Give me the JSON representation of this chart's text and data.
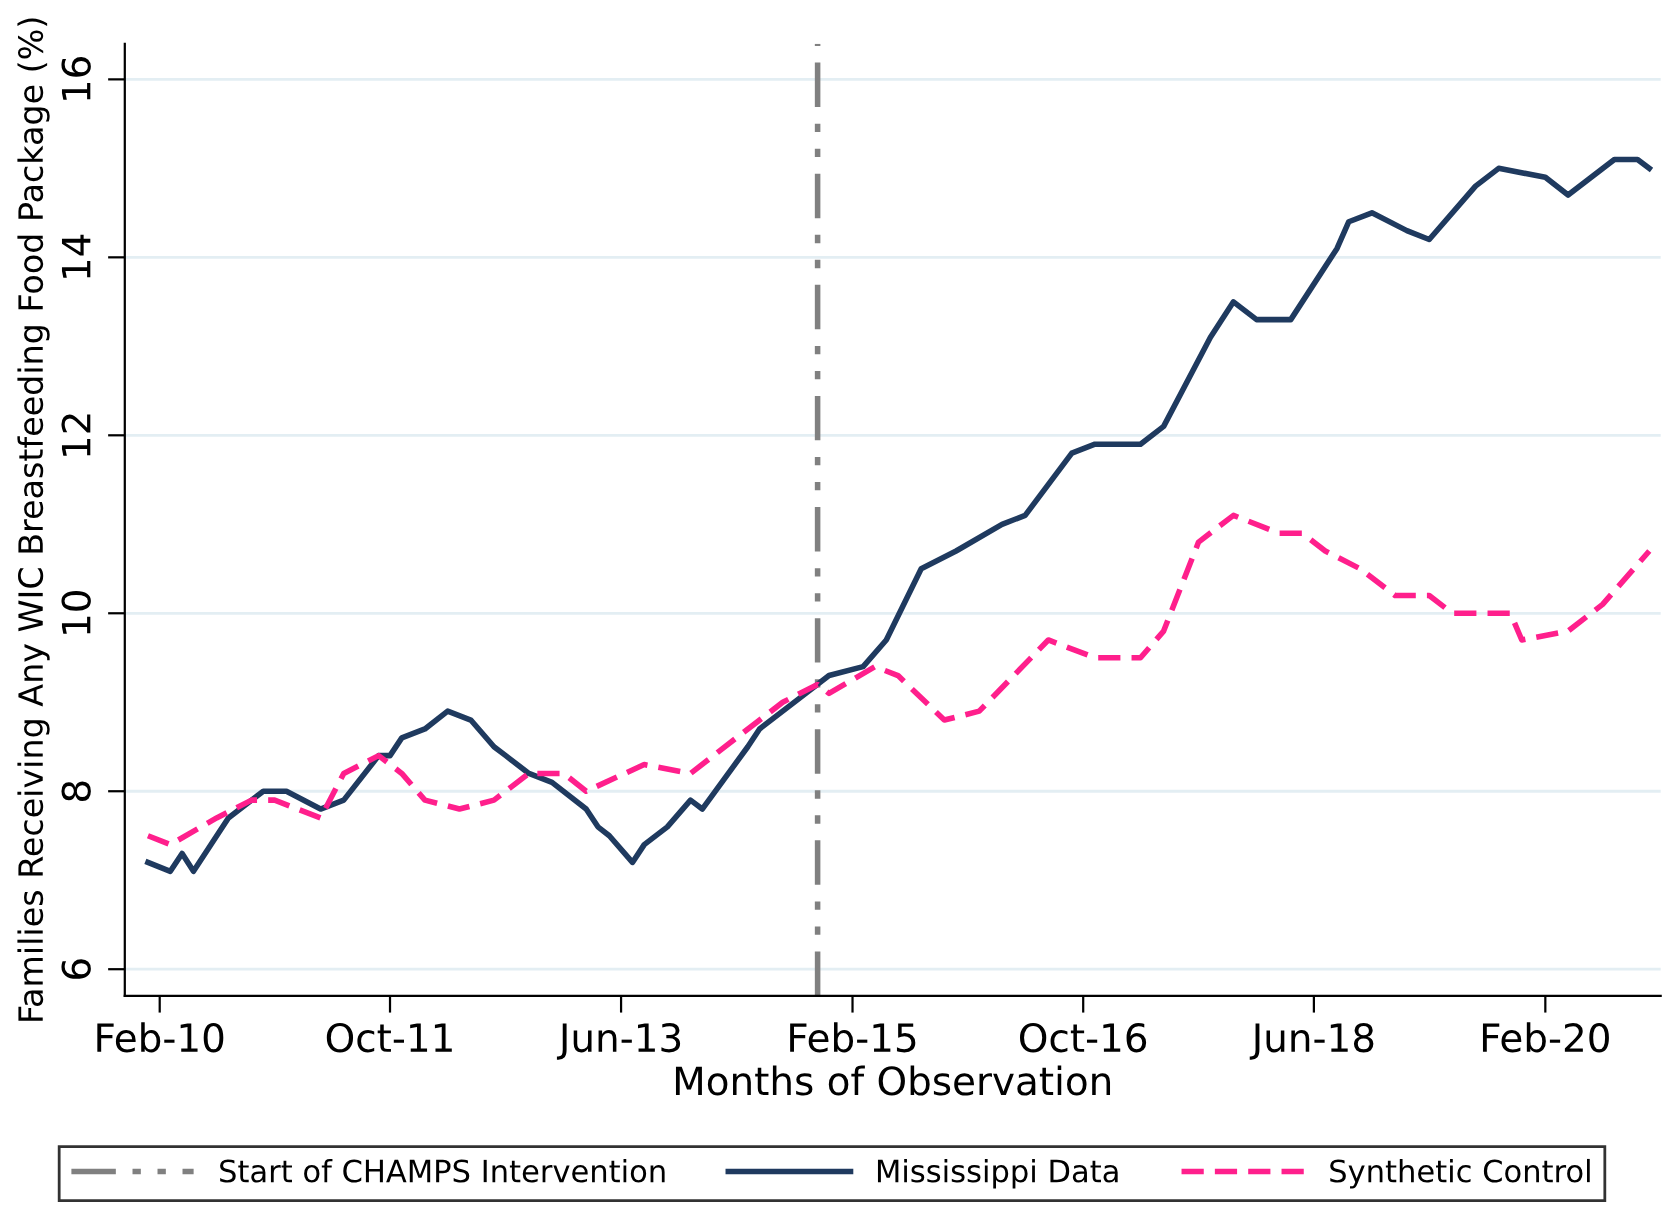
{
  "chart_data": {
    "type": "line",
    "xlabel": "Months of Observation",
    "ylabel": "Families Receiving Any WIC Breastfeeding Food Package (%)",
    "xlim": [
      "2009-11",
      "2020-12"
    ],
    "xticks": [
      {
        "value": "2010-02",
        "label": "Feb-10"
      },
      {
        "value": "2011-10",
        "label": "Oct-11"
      },
      {
        "value": "2013-06",
        "label": "Jun-13"
      },
      {
        "value": "2015-02",
        "label": "Feb-15"
      },
      {
        "value": "2016-10",
        "label": "Oct-16"
      },
      {
        "value": "2018-06",
        "label": "Jun-18"
      },
      {
        "value": "2020-02",
        "label": "Feb-20"
      }
    ],
    "ylim": [
      5.7,
      16.4
    ],
    "yticks": [
      6,
      8,
      10,
      12,
      14,
      16
    ],
    "grid": "y",
    "legend": "bottom",
    "ref_lines": [
      {
        "axis": "x",
        "value": "2014-11",
        "label": "Start of CHAMPS Intervention",
        "color": "#808080",
        "line_style": "dashdot"
      }
    ],
    "series": [
      {
        "name": "Mississippi Data",
        "color": "#1f3a5f",
        "line_style": "solid",
        "x": [
          "2010-01",
          "2010-03",
          "2010-04",
          "2010-05",
          "2010-08",
          "2010-11",
          "2011-01",
          "2011-04",
          "2011-06",
          "2011-09",
          "2011-10",
          "2011-11",
          "2012-01",
          "2012-03",
          "2012-05",
          "2012-07",
          "2012-08",
          "2012-10",
          "2012-12",
          "2013-03",
          "2013-04",
          "2013-05",
          "2013-07",
          "2013-08",
          "2013-10",
          "2013-12",
          "2014-01",
          "2014-05",
          "2014-06",
          "2014-10",
          "2014-12",
          "2015-03",
          "2015-05",
          "2015-08",
          "2015-11",
          "2016-03",
          "2016-05",
          "2016-09",
          "2016-11",
          "2017-03",
          "2017-05",
          "2017-09",
          "2017-11",
          "2018-01",
          "2018-04",
          "2018-08",
          "2018-09",
          "2018-11",
          "2019-02",
          "2019-04",
          "2019-08",
          "2019-10",
          "2020-02",
          "2020-04",
          "2020-06",
          "2020-08",
          "2020-10",
          "2020-11"
        ],
        "values": [
          7.2,
          7.1,
          7.3,
          7.1,
          7.7,
          8.0,
          8.0,
          7.8,
          7.9,
          8.4,
          8.4,
          8.6,
          8.7,
          8.9,
          8.8,
          8.5,
          8.4,
          8.2,
          8.1,
          7.8,
          7.6,
          7.5,
          7.2,
          7.4,
          7.6,
          7.9,
          7.8,
          8.5,
          8.7,
          9.1,
          9.3,
          9.4,
          9.7,
          10.5,
          10.7,
          11.0,
          11.1,
          11.8,
          11.9,
          11.9,
          12.1,
          13.1,
          13.5,
          13.3,
          13.3,
          14.1,
          14.4,
          14.5,
          14.3,
          14.2,
          14.8,
          15.0,
          14.9,
          14.7,
          14.9,
          15.1,
          15.1,
          15.0
        ]
      },
      {
        "name": "Synthetic Control",
        "color": "#ff1f8c",
        "line_style": "dashed",
        "x": [
          "2010-01",
          "2010-03",
          "2010-07",
          "2010-10",
          "2010-12",
          "2011-04",
          "2011-06",
          "2011-09",
          "2011-11",
          "2012-01",
          "2012-04",
          "2012-07",
          "2012-10",
          "2013-01",
          "2013-03",
          "2013-08",
          "2013-12",
          "2014-04",
          "2014-08",
          "2014-11",
          "2014-12",
          "2015-04",
          "2015-06",
          "2015-10",
          "2016-01",
          "2016-07",
          "2016-11",
          "2017-03",
          "2017-05",
          "2017-08",
          "2017-11",
          "2018-03",
          "2018-05",
          "2018-07",
          "2018-10",
          "2019-01",
          "2019-04",
          "2019-06",
          "2019-11",
          "2019-12",
          "2020-04",
          "2020-07",
          "2020-11"
        ],
        "values": [
          7.5,
          7.4,
          7.7,
          7.9,
          7.9,
          7.7,
          8.2,
          8.4,
          8.2,
          7.9,
          7.8,
          7.9,
          8.2,
          8.2,
          8.0,
          8.3,
          8.2,
          8.6,
          9.0,
          9.2,
          9.1,
          9.4,
          9.3,
          8.8,
          8.9,
          9.7,
          9.5,
          9.5,
          9.8,
          10.8,
          11.1,
          10.9,
          10.9,
          10.7,
          10.5,
          10.2,
          10.2,
          10.0,
          10.0,
          9.7,
          9.8,
          10.1,
          10.7
        ]
      }
    ]
  }
}
